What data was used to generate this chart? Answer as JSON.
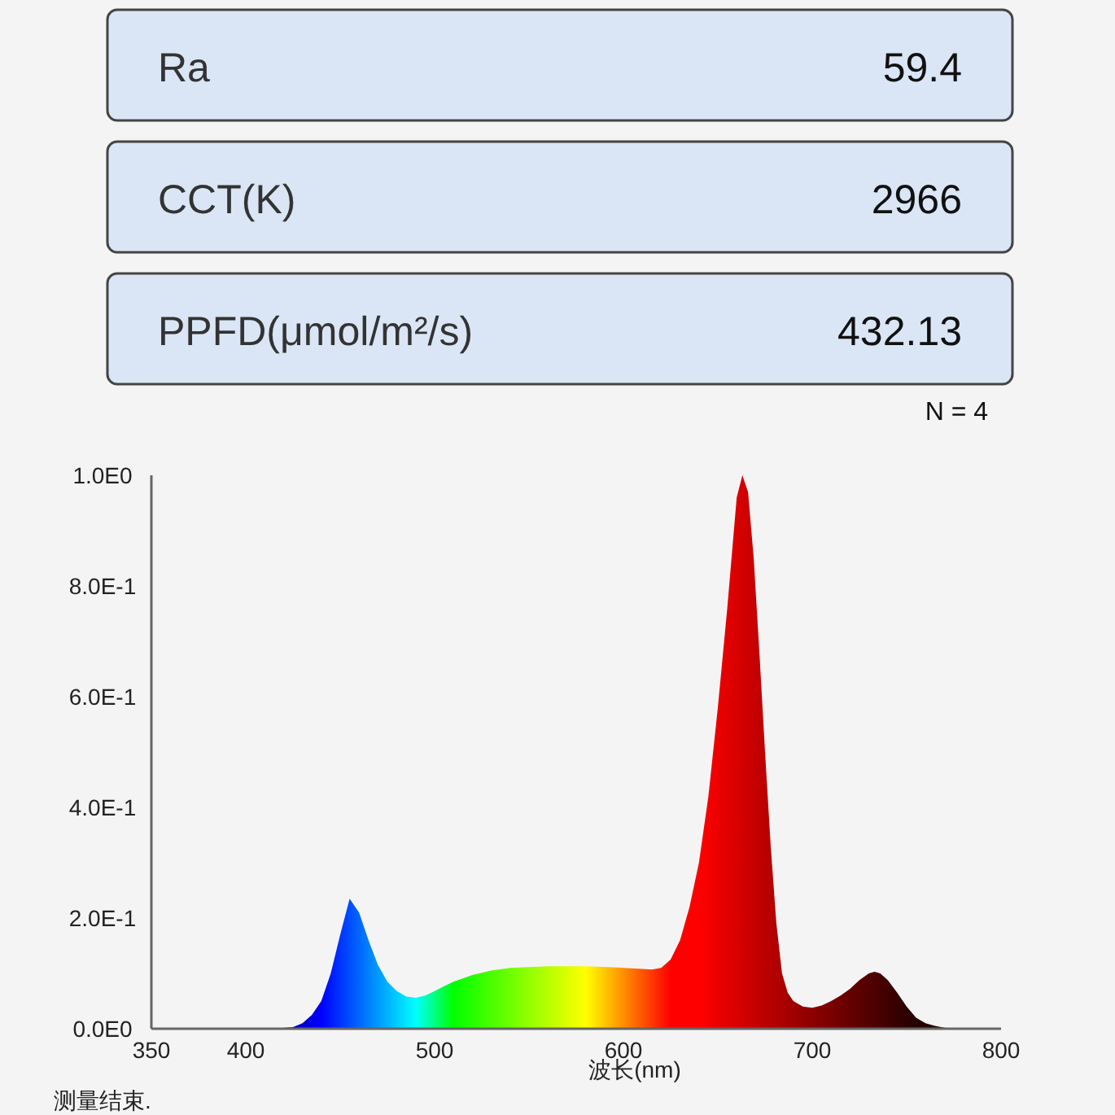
{
  "chart_data": [
    {
      "type": "other",
      "annotations": [
        "Ra",
        "59.4",
        "CCT(K)",
        "2966",
        "PPFD(μmol/m²/s)",
        "432.13",
        "N = 4"
      ]
    },
    {
      "type": "area",
      "xlabel": "波长(nm)",
      "annotations": [
        "测量结束."
      ],
      "x": [
        350,
        400,
        415,
        425,
        430,
        435,
        440,
        445,
        450,
        455,
        460,
        465,
        470,
        475,
        480,
        485,
        490,
        495,
        500,
        505,
        510,
        520,
        530,
        540,
        560,
        580,
        600,
        610,
        615,
        620,
        625,
        630,
        635,
        640,
        645,
        650,
        655,
        658,
        660,
        663,
        666,
        669,
        672,
        675,
        678,
        681,
        684,
        687,
        690,
        695,
        700,
        705,
        710,
        715,
        720,
        725,
        730,
        733,
        736,
        740,
        745,
        750,
        755,
        760,
        765,
        770,
        775,
        800
      ],
      "series": [
        {
          "values": [
            0,
            0,
            0,
            0.003,
            0.01,
            0.025,
            0.05,
            0.1,
            0.17,
            0.235,
            0.21,
            0.16,
            0.115,
            0.085,
            0.068,
            0.058,
            0.056,
            0.06,
            0.068,
            0.077,
            0.085,
            0.097,
            0.105,
            0.11,
            0.113,
            0.113,
            0.11,
            0.108,
            0.107,
            0.11,
            0.125,
            0.16,
            0.22,
            0.3,
            0.42,
            0.58,
            0.76,
            0.88,
            0.96,
            1.0,
            0.97,
            0.85,
            0.68,
            0.5,
            0.33,
            0.19,
            0.1,
            0.065,
            0.05,
            0.04,
            0.038,
            0.042,
            0.05,
            0.06,
            0.072,
            0.088,
            0.1,
            0.103,
            0.1,
            0.088,
            0.065,
            0.04,
            0.02,
            0.01,
            0.005,
            0.002,
            0,
            0
          ]
        }
      ],
      "xlim": [
        350,
        800
      ],
      "ylim": [
        0,
        1
      ],
      "xticks": [
        350,
        400,
        500,
        600,
        700,
        800
      ],
      "yticks": [
        {
          "value": 0,
          "label": "0.0E0"
        },
        {
          "value": 0.2,
          "label": "2.0E-1"
        },
        {
          "value": 0.4,
          "label": "4.0E-1"
        },
        {
          "value": 0.6,
          "label": "6.0E-1"
        },
        {
          "value": 0.8,
          "label": "8.0E-1"
        },
        {
          "value": 1,
          "label": "1.0E0"
        }
      ],
      "grid": false
    }
  ]
}
